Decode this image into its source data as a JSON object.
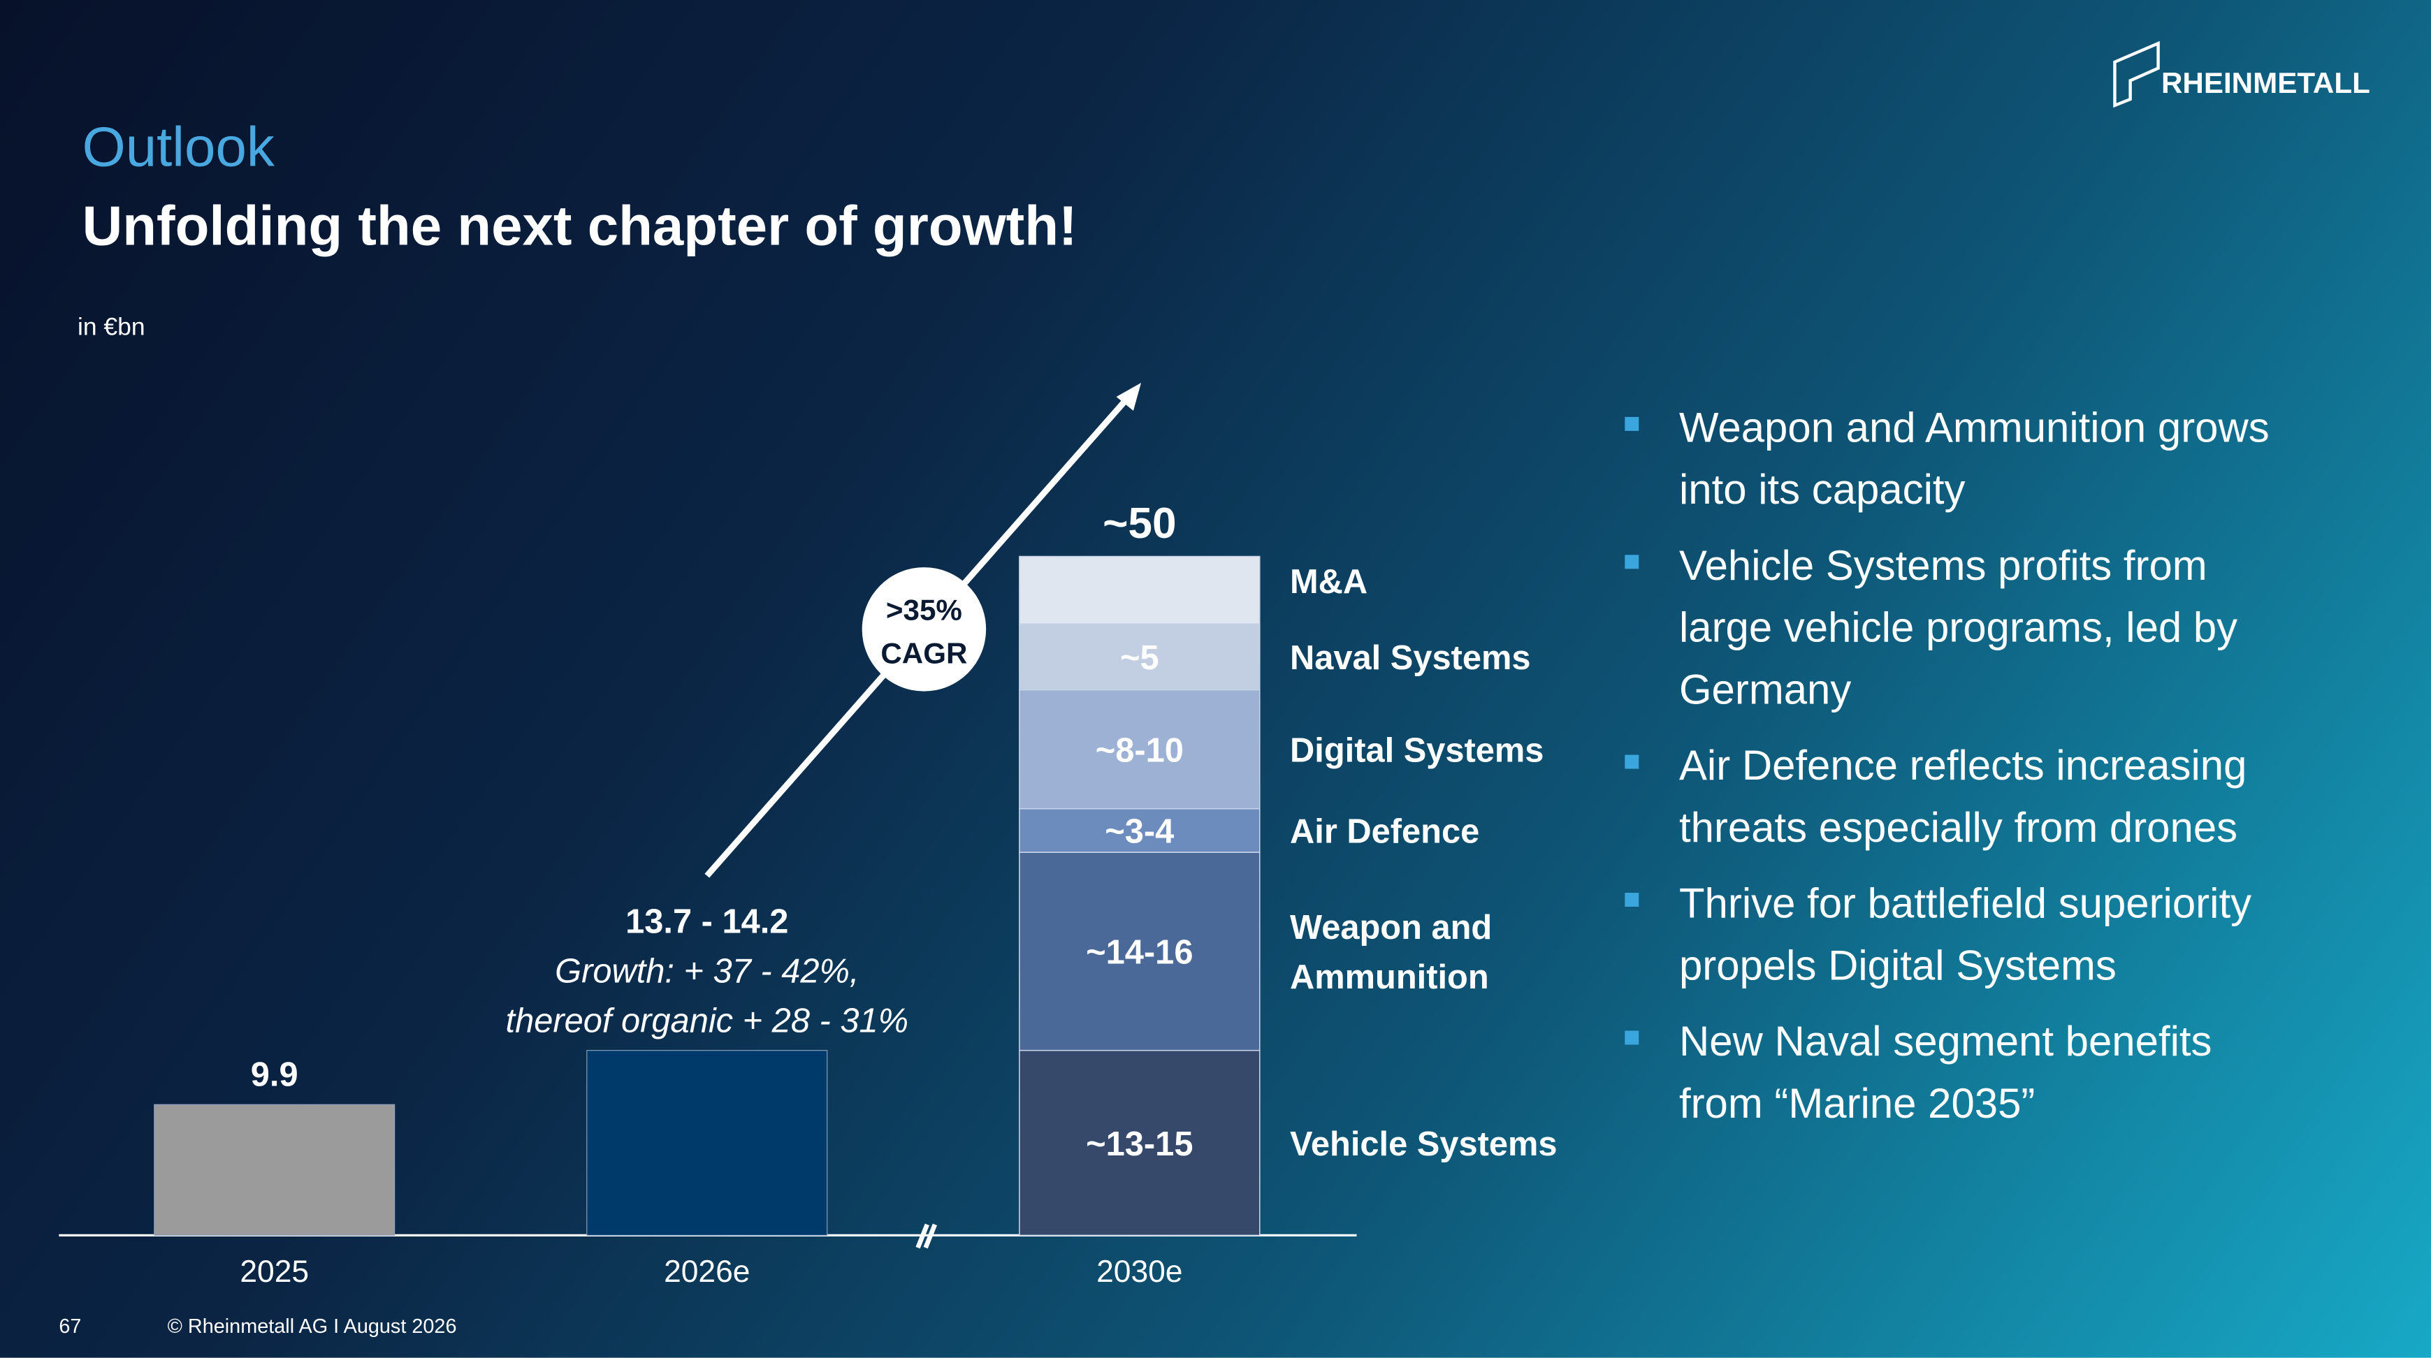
{
  "header": {
    "section": "Outlook",
    "title": "Unfolding the next chapter of growth!",
    "logo": "RHEINMETALL"
  },
  "chart_data": {
    "type": "stacked_bar",
    "unit": "in €bn",
    "categories": [
      "2025",
      "2026e",
      "2030e"
    ],
    "values": [
      9.9,
      14,
      null
    ],
    "value_labels": [
      "9.9",
      "13.7 - 14.2",
      null
    ],
    "colors": [
      "#9b9b9b",
      "#003a6b",
      null
    ],
    "note": [
      "Growth: + 37 - 42%,",
      "thereof organic + 28 - 31%"
    ],
    "total_label": "~50",
    "cagr": [
      ">35%",
      "CAGR"
    ],
    "segments": [
      {
        "name": "Vehicle Systems",
        "value": 14,
        "value_label": "~13-15",
        "color": "#36496b"
      },
      {
        "name": "Weapon and Ammunition",
        "value": 15,
        "value_label": "~14-16",
        "color": "#4a6898"
      },
      {
        "name": "Air Defence",
        "value": 3.3,
        "value_label": "~3-4",
        "color": "#6d8cbe"
      },
      {
        "name": "Digital Systems",
        "value": 9,
        "value_label": "~8-10",
        "color": "#9cb1d4"
      },
      {
        "name": "Naval Systems",
        "value": 5,
        "value_label": "~5",
        "color": "#c2cfe3"
      },
      {
        "name": "M&A",
        "value": 5.1,
        "color": "#dfe6f0"
      }
    ]
  },
  "bullets": [
    [
      "Weapon and Ammunition grows",
      "into its capacity"
    ],
    [
      "Vehicle Systems profits from",
      "large vehicle programs, led by",
      "Germany"
    ],
    [
      "Air Defence reflects increasing",
      "threats especially from drones"
    ],
    [
      "Thrive for battlefield superiority",
      "propels Digital Systems"
    ],
    [
      "New Naval segment benefits",
      "from “Marine 2035”"
    ]
  ],
  "footer": {
    "page": "67",
    "copyright": "© Rheinmetall AG I August  2026"
  }
}
